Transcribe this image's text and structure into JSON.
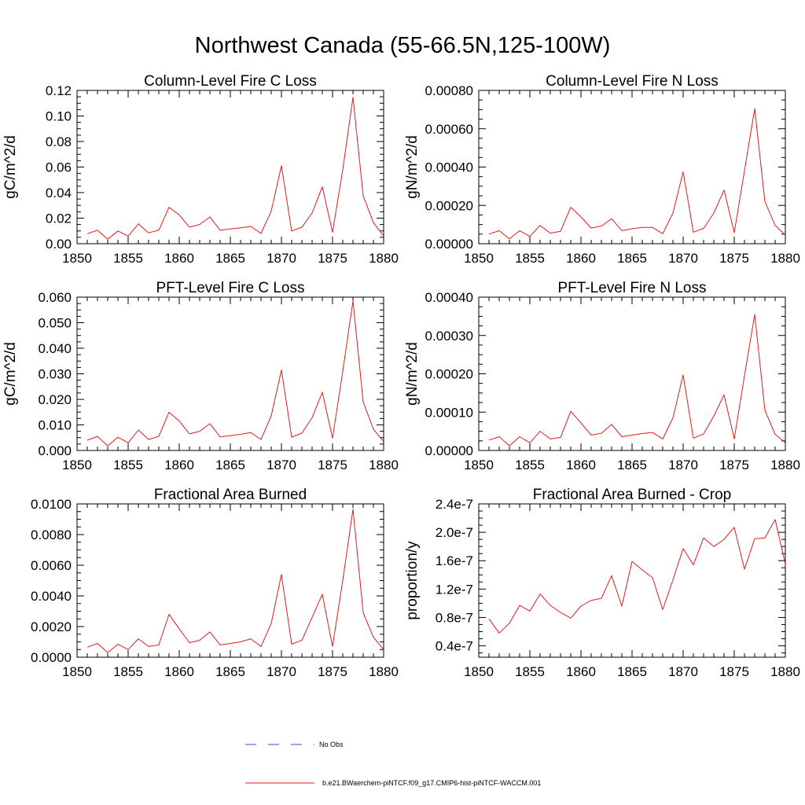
{
  "figure": {
    "title": "Northwest Canada (55-66.5N,125-100W)",
    "line_color": "#e31a1c",
    "obs_color": "#3b4bd0"
  },
  "legend": {
    "entries": [
      {
        "label": "No Obs",
        "style": "dashed",
        "color": "#3b4bd0"
      },
      {
        "label": "b.e21.BWaerchem-piNTCF.f09_g17.CMIP6-hist-piNTCF-WACCM.001",
        "style": "solid",
        "color": "#e31a1c"
      }
    ]
  },
  "chart_data": [
    {
      "type": "line",
      "title": "Column-Level Fire C Loss",
      "ylabel": "gC/m^2/d",
      "xlim": [
        1850,
        1880
      ],
      "ylim": [
        0,
        0.12
      ],
      "xticks": [
        1850,
        1855,
        1860,
        1865,
        1870,
        1875,
        1880
      ],
      "yticks": [
        0,
        0.02,
        0.04,
        0.06,
        0.08,
        0.1,
        0.12
      ],
      "ytick_labels": [
        "0.00",
        "0.02",
        "0.04",
        "0.06",
        "0.08",
        "0.10",
        "0.12"
      ],
      "x": [
        1851,
        1852,
        1853,
        1854,
        1855,
        1856,
        1857,
        1858,
        1859,
        1860,
        1861,
        1862,
        1863,
        1864,
        1865,
        1866,
        1867,
        1868,
        1869,
        1870,
        1871,
        1872,
        1873,
        1874,
        1875,
        1876,
        1877,
        1878,
        1879,
        1880
      ],
      "series": [
        {
          "values": [
            0.0078,
            0.0105,
            0.0035,
            0.01,
            0.006,
            0.0155,
            0.0085,
            0.0105,
            0.0285,
            0.0225,
            0.013,
            0.015,
            0.021,
            0.0105,
            0.0115,
            0.0125,
            0.0135,
            0.008,
            0.0255,
            0.061,
            0.01,
            0.013,
            0.024,
            0.0445,
            0.009,
            0.058,
            0.1145,
            0.0375,
            0.0165,
            0.006
          ]
        }
      ]
    },
    {
      "type": "line",
      "title": "Column-Level Fire N Loss",
      "ylabel": "gN/m^2/d",
      "xlim": [
        1850,
        1880
      ],
      "ylim": [
        0,
        0.0008
      ],
      "xticks": [
        1850,
        1855,
        1860,
        1865,
        1870,
        1875,
        1880
      ],
      "yticks": [
        0,
        0.0002,
        0.0004,
        0.0006,
        0.0008
      ],
      "ytick_labels": [
        "0.00000",
        "0.00020",
        "0.00040",
        "0.00060",
        "0.00080"
      ],
      "x": [
        1851,
        1852,
        1853,
        1854,
        1855,
        1856,
        1857,
        1858,
        1859,
        1860,
        1861,
        1862,
        1863,
        1864,
        1865,
        1866,
        1867,
        1868,
        1869,
        1870,
        1871,
        1872,
        1873,
        1874,
        1875,
        1876,
        1877,
        1878,
        1879,
        1880
      ],
      "series": [
        {
          "values": [
            5e-05,
            6.8e-05,
            2.5e-05,
            6.8e-05,
            3.8e-05,
            9.5e-05,
            5.5e-05,
            6.5e-05,
            0.00019,
            0.00014,
            8.2e-05,
            9.2e-05,
            0.00013,
            6.8e-05,
            7.8e-05,
            8.5e-05,
            8.5e-05,
            5.2e-05,
            0.00016,
            0.000375,
            6e-05,
            8e-05,
            0.00016,
            0.00028,
            5.8e-05,
            0.00038,
            0.000705,
            0.00022,
            9.5e-05,
            4.5e-05
          ]
        }
      ]
    },
    {
      "type": "line",
      "title": "PFT-Level Fire C Loss",
      "ylabel": "gC/m^2/d",
      "xlim": [
        1850,
        1880
      ],
      "ylim": [
        0,
        0.06
      ],
      "xticks": [
        1850,
        1855,
        1860,
        1865,
        1870,
        1875,
        1880
      ],
      "yticks": [
        0,
        0.01,
        0.02,
        0.03,
        0.04,
        0.05,
        0.06
      ],
      "ytick_labels": [
        "0.000",
        "0.010",
        "0.020",
        "0.030",
        "0.040",
        "0.050",
        "0.060"
      ],
      "x": [
        1851,
        1852,
        1853,
        1854,
        1855,
        1856,
        1857,
        1858,
        1859,
        1860,
        1861,
        1862,
        1863,
        1864,
        1865,
        1866,
        1867,
        1868,
        1869,
        1870,
        1871,
        1872,
        1873,
        1874,
        1875,
        1876,
        1877,
        1878,
        1879,
        1880
      ],
      "series": [
        {
          "values": [
            0.004,
            0.0055,
            0.0018,
            0.0052,
            0.003,
            0.008,
            0.0043,
            0.0055,
            0.015,
            0.0115,
            0.0065,
            0.0075,
            0.0105,
            0.0053,
            0.0058,
            0.0063,
            0.007,
            0.0043,
            0.0135,
            0.0315,
            0.0052,
            0.0068,
            0.0128,
            0.0228,
            0.0048,
            0.031,
            0.0585,
            0.019,
            0.0083,
            0.0035
          ]
        }
      ]
    },
    {
      "type": "line",
      "title": "PFT-Level Fire N Loss",
      "ylabel": "gN/m^2/d",
      "xlim": [
        1850,
        1880
      ],
      "ylim": [
        0,
        0.0004
      ],
      "xticks": [
        1850,
        1855,
        1860,
        1865,
        1870,
        1875,
        1880
      ],
      "yticks": [
        0,
        0.0001,
        0.0002,
        0.0003,
        0.0004
      ],
      "ytick_labels": [
        "0.00000",
        "0.00010",
        "0.00020",
        "0.00030",
        "0.00040"
      ],
      "x": [
        1851,
        1852,
        1853,
        1854,
        1855,
        1856,
        1857,
        1858,
        1859,
        1860,
        1861,
        1862,
        1863,
        1864,
        1865,
        1866,
        1867,
        1868,
        1869,
        1870,
        1871,
        1872,
        1873,
        1874,
        1875,
        1876,
        1877,
        1878,
        1879,
        1880
      ],
      "series": [
        {
          "values": [
            2.7e-05,
            3.6e-05,
            1.2e-05,
            3.6e-05,
            2e-05,
            5e-05,
            3e-05,
            3.4e-05,
            0.000102,
            7.2e-05,
            4e-05,
            4.5e-05,
            6.8e-05,
            3.6e-05,
            4e-05,
            4.4e-05,
            4.7e-05,
            3e-05,
            8.5e-05,
            0.000197,
            3.2e-05,
            4.3e-05,
            9e-05,
            0.000145,
            3e-05,
            0.000195,
            0.000355,
            0.000105,
            4.2e-05,
            2e-05
          ]
        }
      ]
    },
    {
      "type": "line",
      "title": "Fractional Area Burned",
      "ylabel": "",
      "xlim": [
        1850,
        1880
      ],
      "ylim": [
        0,
        0.01
      ],
      "xticks": [
        1850,
        1855,
        1860,
        1865,
        1870,
        1875,
        1880
      ],
      "yticks": [
        0,
        0.002,
        0.004,
        0.006,
        0.008,
        0.01
      ],
      "ytick_labels": [
        "0.0000",
        "0.0020",
        "0.0040",
        "0.0060",
        "0.0080",
        "0.0100"
      ],
      "x": [
        1851,
        1852,
        1853,
        1854,
        1855,
        1856,
        1857,
        1858,
        1859,
        1860,
        1861,
        1862,
        1863,
        1864,
        1865,
        1866,
        1867,
        1868,
        1869,
        1870,
        1871,
        1872,
        1873,
        1874,
        1875,
        1876,
        1877,
        1878,
        1879,
        1880
      ],
      "series": [
        {
          "values": [
            0.00065,
            0.0009,
            0.0003,
            0.00085,
            0.0005,
            0.0012,
            0.0007,
            0.0008,
            0.0028,
            0.00185,
            0.00095,
            0.0011,
            0.00165,
            0.0008,
            0.0009,
            0.001,
            0.0012,
            0.0007,
            0.0022,
            0.0054,
            0.00085,
            0.0011,
            0.0026,
            0.0041,
            0.0007,
            0.005,
            0.00965,
            0.0029,
            0.0013,
            0.0005
          ]
        }
      ]
    },
    {
      "type": "line",
      "title": "Fractional Area Burned - Crop",
      "ylabel": "proportion/y",
      "xlim": [
        1850,
        1880
      ],
      "ylim": [
        2.4e-08,
        2.4e-07
      ],
      "xticks": [
        1850,
        1855,
        1860,
        1865,
        1870,
        1875,
        1880
      ],
      "yticks": [
        4e-08,
        8e-08,
        1.2e-07,
        1.6e-07,
        2e-07,
        2.4e-07
      ],
      "ytick_labels": [
        "0.4e-7",
        "0.8e-7",
        "1.2e-7",
        "1.6e-7",
        "2.0e-7",
        "2.4e-7"
      ],
      "x": [
        1851,
        1852,
        1853,
        1854,
        1855,
        1856,
        1857,
        1858,
        1859,
        1860,
        1861,
        1862,
        1863,
        1864,
        1865,
        1866,
        1867,
        1868,
        1869,
        1870,
        1871,
        1872,
        1873,
        1874,
        1875,
        1876,
        1877,
        1878,
        1879,
        1880
      ],
      "series": [
        {
          "values": [
            7.8e-08,
            5.8e-08,
            7.2e-08,
            9.7e-08,
            8.9e-08,
            1.13e-07,
            9.7e-08,
            8.7e-08,
            7.9e-08,
            9.6e-08,
            1.04e-07,
            1.07e-07,
            1.39e-07,
            9.6e-08,
            1.59e-07,
            1.47e-07,
            1.36e-07,
            9.1e-08,
            1.33e-07,
            1.77e-07,
            1.54e-07,
            1.92e-07,
            1.8e-07,
            1.9e-07,
            2.07e-07,
            1.48e-07,
            1.91e-07,
            1.92e-07,
            2.18e-07,
            1.55e-07
          ]
        }
      ]
    }
  ]
}
